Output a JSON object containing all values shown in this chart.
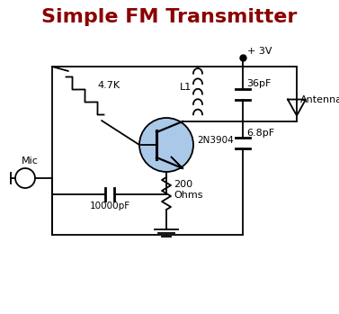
{
  "title": "Simple FM Transmitter",
  "title_color": "#8B0000",
  "title_fontsize": 16,
  "title_fontweight": "bold",
  "bg_color": "#ffffff",
  "line_color": "#000000",
  "transistor_fill": "#aac8e8",
  "labels": {
    "resistor_4k7": "4.7K",
    "capacitor_10000": "10000pF",
    "capacitor_36": "36pF",
    "capacitor_6p8": "6.8pF",
    "resistor_200": "200\nOhms",
    "transistor": "2N3904",
    "inductor": "L1",
    "power": "+ 3V",
    "antenna": "Antenna",
    "mic": "Mic"
  }
}
